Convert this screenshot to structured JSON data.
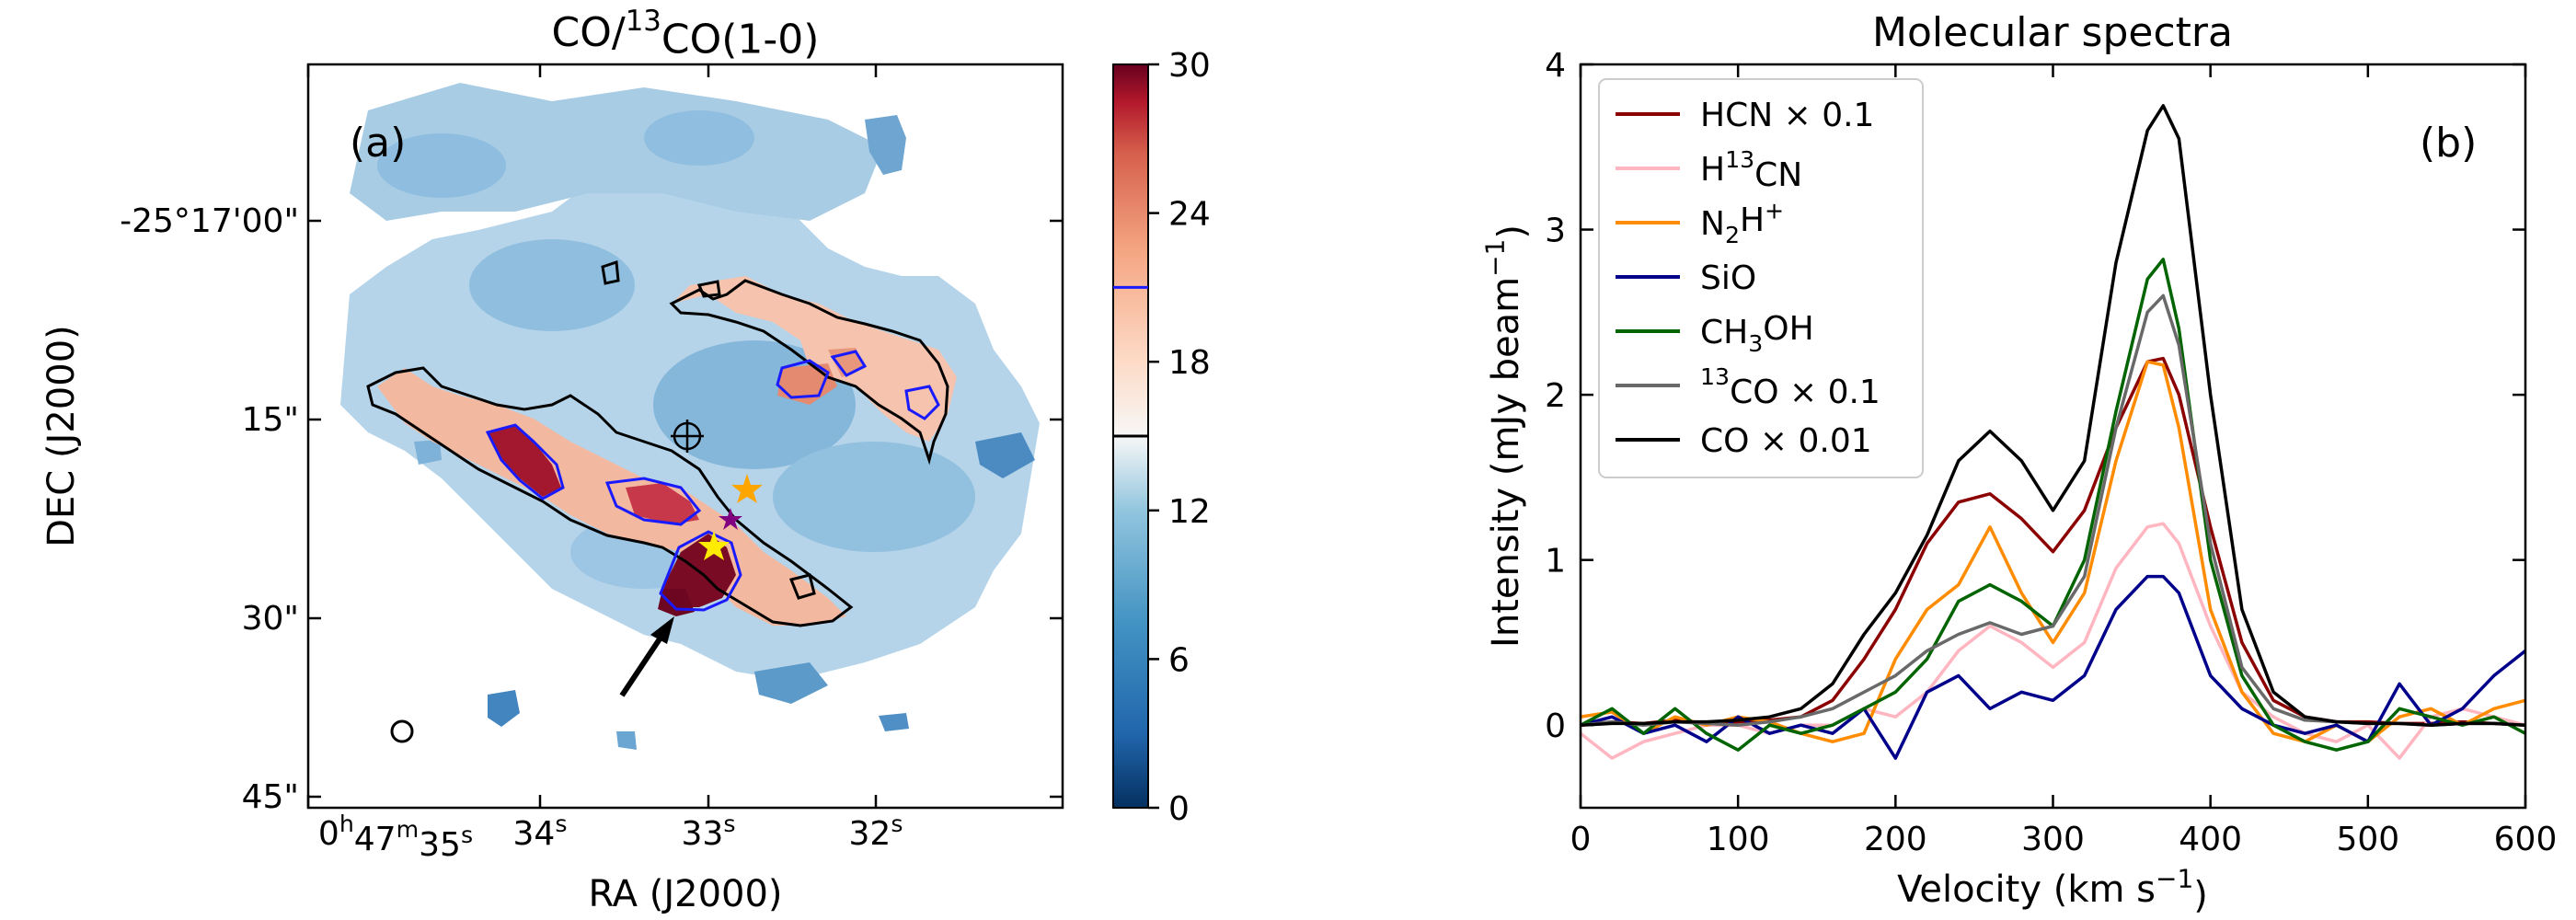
{
  "chart_data": [
    {
      "panel": "(a)",
      "type": "heatmap",
      "title": "CO/13CO(1-0)",
      "title_parts": {
        "pre": "CO/",
        "sup": "13",
        "post": "CO(1-0)"
      },
      "xlabel": "RA (J2000)",
      "ylabel": "DEC (J2000)",
      "x_ticks": [
        {
          "h": "0",
          "m": "47",
          "s": "35",
          "label": "0h47m35s"
        },
        {
          "s": "34",
          "label": "34s"
        },
        {
          "s": "33",
          "label": "33s"
        },
        {
          "s": "32",
          "label": "32s"
        }
      ],
      "y_ticks": [
        "-25°17'00\"",
        "15\"",
        "30\"",
        "45\""
      ],
      "colorbar": {
        "ticks": [
          0,
          6,
          12,
          18,
          24,
          30
        ],
        "range": [
          0,
          30
        ],
        "cmap": "RdBu_r",
        "contour_levels": [
          15,
          21
        ],
        "contour_colors": [
          "#000000",
          "#1a1aff"
        ]
      },
      "annotations": [
        "arrow",
        "orange-star",
        "yellow-star",
        "purple-star",
        "crosshair-circle",
        "beam-ellipse"
      ]
    },
    {
      "panel": "(b)",
      "type": "line",
      "title": "Molecular spectra",
      "xlabel": "Velocity (km s-1)",
      "xlabel_parts": {
        "pre": "Velocity (km s",
        "sup": "−1",
        "post": ")"
      },
      "ylabel": "Intensity (mJy beam-1)",
      "ylabel_parts": {
        "pre": "Intensity (mJy beam",
        "sup": "−1",
        "post": ")"
      },
      "xlim": [
        0,
        600
      ],
      "ylim": [
        -0.5,
        4
      ],
      "x_ticks": [
        0,
        100,
        200,
        300,
        400,
        500,
        600
      ],
      "y_ticks": [
        0,
        1,
        2,
        3,
        4
      ],
      "x": [
        0,
        20,
        40,
        60,
        80,
        100,
        120,
        140,
        160,
        180,
        200,
        220,
        240,
        260,
        280,
        300,
        320,
        340,
        360,
        370,
        380,
        400,
        420,
        440,
        460,
        480,
        500,
        520,
        540,
        560,
        580,
        600
      ],
      "series": [
        {
          "name": "HCN × 0.1",
          "label_parts": [
            {
              "t": "HCN × 0.1"
            }
          ],
          "color": "#8b0000",
          "values": [
            0,
            0.02,
            0.01,
            0.03,
            0.01,
            0.02,
            0.03,
            0.05,
            0.15,
            0.4,
            0.7,
            1.1,
            1.35,
            1.4,
            1.25,
            1.05,
            1.3,
            1.8,
            2.2,
            2.22,
            2.0,
            1.2,
            0.5,
            0.15,
            0.05,
            0.02,
            0.02,
            0.01,
            0.01,
            0.02,
            0.01,
            0.0
          ]
        },
        {
          "name": "H13CN",
          "label_parts": [
            {
              "t": "H"
            },
            {
              "t": "13",
              "sup": true
            },
            {
              "t": "CN"
            }
          ],
          "color": "#ffb6c1",
          "values": [
            -0.05,
            -0.2,
            -0.1,
            -0.05,
            0.0,
            0.0,
            -0.05,
            0.0,
            0.0,
            0.1,
            0.05,
            0.2,
            0.45,
            0.6,
            0.5,
            0.35,
            0.5,
            0.95,
            1.2,
            1.22,
            1.1,
            0.6,
            0.2,
            0.05,
            -0.05,
            -0.1,
            0.0,
            -0.2,
            0.05,
            0.1,
            0.05,
            0.0
          ]
        },
        {
          "name": "N2H+",
          "label_parts": [
            {
              "t": "N"
            },
            {
              "t": "2",
              "sub": true
            },
            {
              "t": "H"
            },
            {
              "t": "+",
              "sup": true
            }
          ],
          "color": "#ff8c00",
          "values": [
            0.05,
            0.08,
            -0.05,
            0.05,
            0.0,
            0.05,
            0.02,
            -0.05,
            -0.1,
            -0.05,
            0.4,
            0.7,
            0.85,
            1.2,
            0.8,
            0.5,
            0.8,
            1.6,
            2.2,
            2.18,
            1.8,
            0.7,
            0.2,
            -0.05,
            -0.1,
            0.0,
            -0.1,
            0.05,
            0.1,
            0.0,
            0.1,
            0.15
          ]
        },
        {
          "name": "SiO",
          "label_parts": [
            {
              "t": "SiO"
            }
          ],
          "color": "#00008b",
          "values": [
            0.0,
            0.05,
            -0.05,
            0.0,
            -0.1,
            0.05,
            -0.05,
            0.0,
            -0.05,
            0.1,
            -0.2,
            0.2,
            0.3,
            0.1,
            0.2,
            0.15,
            0.3,
            0.7,
            0.9,
            0.9,
            0.8,
            0.3,
            0.1,
            0.0,
            -0.05,
            0.0,
            -0.1,
            0.25,
            0.0,
            0.1,
            0.3,
            0.45
          ]
        },
        {
          "name": "CH3OH",
          "label_parts": [
            {
              "t": "CH"
            },
            {
              "t": "3",
              "sub": true
            },
            {
              "t": "OH"
            }
          ],
          "color": "#006400",
          "values": [
            0.0,
            0.1,
            -0.05,
            0.1,
            -0.05,
            -0.15,
            0.0,
            -0.05,
            0.0,
            0.1,
            0.2,
            0.4,
            0.75,
            0.85,
            0.75,
            0.6,
            1.0,
            1.9,
            2.7,
            2.82,
            2.4,
            1.0,
            0.3,
            0.0,
            -0.1,
            -0.15,
            -0.1,
            0.1,
            0.05,
            0.0,
            0.05,
            -0.05
          ]
        },
        {
          "name": "13CO × 0.1",
          "label_parts": [
            {
              "t": "13",
              "sup": true
            },
            {
              "t": "CO × 0.1"
            }
          ],
          "color": "#696969",
          "values": [
            0.0,
            0.02,
            0.0,
            0.02,
            0.01,
            0.0,
            0.02,
            0.05,
            0.1,
            0.2,
            0.3,
            0.45,
            0.55,
            0.62,
            0.55,
            0.6,
            0.9,
            1.8,
            2.5,
            2.6,
            2.3,
            1.1,
            0.35,
            0.1,
            0.03,
            0.02,
            0.01,
            0.01,
            0.0,
            0.01,
            0.01,
            0.0
          ]
        },
        {
          "name": "CO × 0.01",
          "label_parts": [
            {
              "t": "CO × 0.01"
            }
          ],
          "color": "#000000",
          "values": [
            0.0,
            0.01,
            0.01,
            0.02,
            0.02,
            0.03,
            0.05,
            0.1,
            0.25,
            0.55,
            0.8,
            1.15,
            1.6,
            1.78,
            1.6,
            1.3,
            1.6,
            2.8,
            3.6,
            3.75,
            3.55,
            2.0,
            0.7,
            0.2,
            0.05,
            0.02,
            0.01,
            0.01,
            0.0,
            0.01,
            0.01,
            0.0
          ]
        }
      ],
      "legend_loc": "top-left"
    }
  ]
}
